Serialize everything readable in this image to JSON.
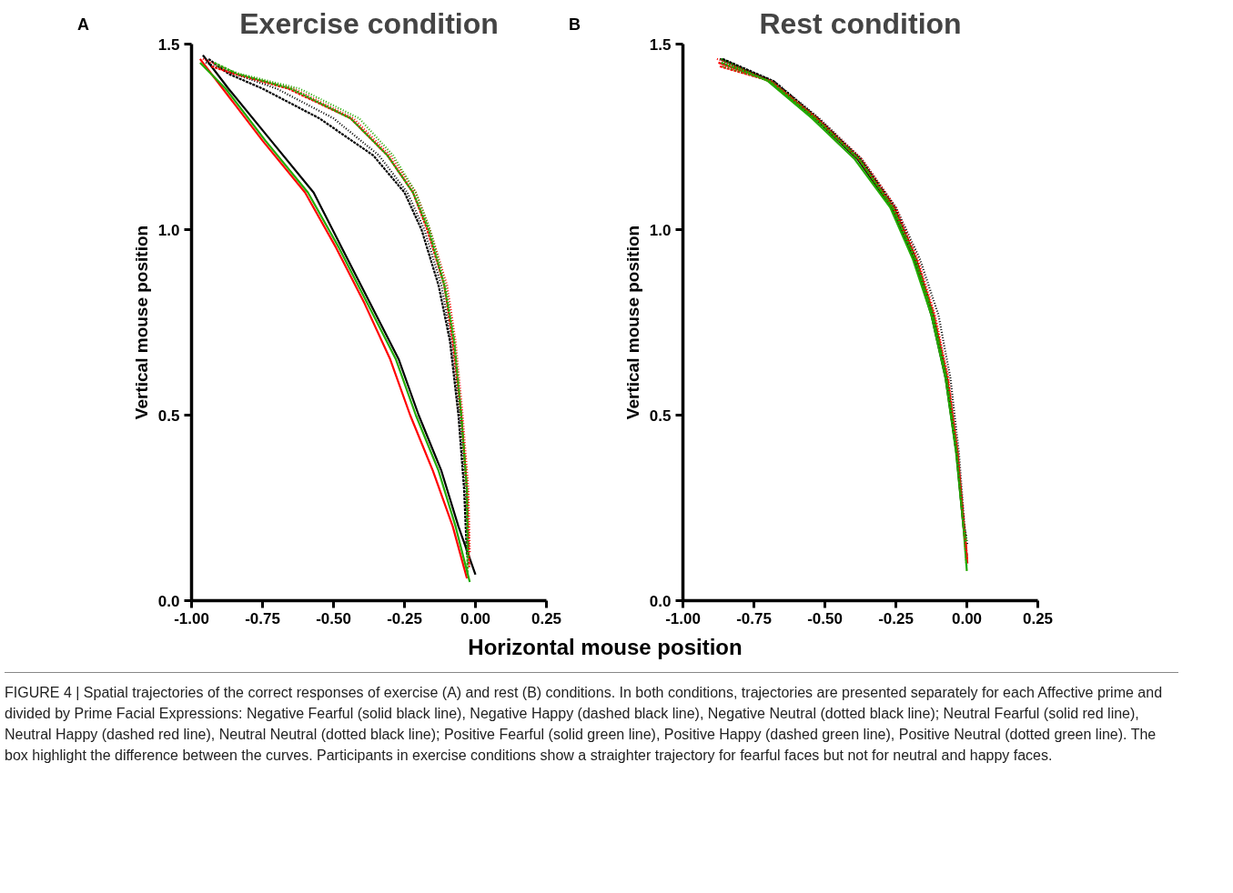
{
  "chart_data": [
    {
      "type": "line",
      "title": "Exercise condition",
      "xlabel": "Horizontal mouse position",
      "ylabel": "Vertical mouse position",
      "annotations": [
        "A",
        "FIGURE 4 | Spatial trajectories of the correct responses of exercise (A) and rest (B) conditions. In both conditions, trajectories are presented separately for each Affective prime and divided by Prime Facial Expressions: Negative Fearful (solid black line), Negative Happy (dashed black line), Negative Neutral (dotted black line); Neutral Fearful (solid red line), Neutral Happy (dashed red line), Neutral Neutral (dotted black line); Positive Fearful (solid green line), Positive Happy (dashed green line), Positive Neutral (dotted green line). The box highlight the difference between the curves. Participants in exercise conditions show a straighter trajectory for fearful faces but not for neutral and happy faces."
      ],
      "xlim": [
        -1.0,
        0.25
      ],
      "ylim": [
        0,
        1.5
      ],
      "xticks": [
        {
          "value": -1.0,
          "label": "-1.00"
        },
        {
          "value": -0.75,
          "label": "-0.75"
        },
        {
          "value": -0.5,
          "label": "-0.50"
        },
        {
          "value": -0.25,
          "label": "-0.25"
        },
        {
          "value": 0,
          "label": "0.00"
        },
        {
          "value": 0.25,
          "label": "0.25"
        }
      ],
      "yticks": [
        {
          "value": 0,
          "label": "0.0"
        },
        {
          "value": 0.5,
          "label": "0.5"
        },
        {
          "value": 1.0,
          "label": "1.0"
        },
        {
          "value": 1.5,
          "label": "1.5"
        }
      ],
      "series": [
        {
          "color": "#000000",
          "line_style": "solid",
          "x": [
            -0.96,
            -0.87,
            -0.72,
            -0.57,
            -0.47,
            -0.37,
            -0.27,
            -0.2,
            -0.12,
            -0.06,
            0.0
          ],
          "values": [
            1.47,
            1.38,
            1.24,
            1.1,
            0.95,
            0.8,
            0.65,
            0.5,
            0.35,
            0.2,
            0.07
          ]
        },
        {
          "color": "#ff0000",
          "line_style": "solid",
          "x": [
            -0.97,
            -0.89,
            -0.75,
            -0.6,
            -0.49,
            -0.39,
            -0.3,
            -0.23,
            -0.15,
            -0.08,
            -0.03
          ],
          "values": [
            1.46,
            1.38,
            1.24,
            1.1,
            0.95,
            0.8,
            0.65,
            0.5,
            0.35,
            0.2,
            0.06
          ]
        },
        {
          "color": "#22aa00",
          "line_style": "solid",
          "x": [
            -0.97,
            -0.88,
            -0.74,
            -0.59,
            -0.48,
            -0.38,
            -0.28,
            -0.21,
            -0.13,
            -0.07,
            -0.02
          ],
          "values": [
            1.45,
            1.38,
            1.24,
            1.1,
            0.95,
            0.8,
            0.65,
            0.5,
            0.35,
            0.2,
            0.05
          ]
        },
        {
          "color": "#000000",
          "line_style": "dashed",
          "x": [
            -0.94,
            -0.87,
            -0.75,
            -0.55,
            -0.36,
            -0.25,
            -0.19,
            -0.13,
            -0.09,
            -0.06,
            -0.04,
            -0.03
          ],
          "values": [
            1.46,
            1.42,
            1.38,
            1.3,
            1.2,
            1.1,
            1.0,
            0.85,
            0.7,
            0.5,
            0.3,
            0.12
          ]
        },
        {
          "color": "#000000",
          "line_style": "dotted",
          "x": [
            -0.95,
            -0.85,
            -0.7,
            -0.5,
            -0.34,
            -0.24,
            -0.18,
            -0.12,
            -0.085,
            -0.055,
            -0.035,
            -0.025
          ],
          "values": [
            1.45,
            1.42,
            1.38,
            1.3,
            1.2,
            1.1,
            1.0,
            0.85,
            0.7,
            0.5,
            0.3,
            0.1
          ]
        },
        {
          "color": "#ff0000",
          "line_style": "dashed",
          "x": [
            -0.93,
            -0.85,
            -0.66,
            -0.44,
            -0.31,
            -0.22,
            -0.17,
            -0.11,
            -0.08,
            -0.05,
            -0.03,
            -0.022
          ],
          "values": [
            1.44,
            1.42,
            1.38,
            1.3,
            1.2,
            1.1,
            1.0,
            0.85,
            0.7,
            0.5,
            0.3,
            0.09
          ]
        },
        {
          "color": "#ff0000",
          "line_style": "dotted",
          "x": [
            -0.96,
            -0.84,
            -0.64,
            -0.43,
            -0.3,
            -0.21,
            -0.16,
            -0.1,
            -0.07,
            -0.045,
            -0.025,
            -0.02
          ],
          "values": [
            1.46,
            1.42,
            1.38,
            1.3,
            1.2,
            1.1,
            1.0,
            0.85,
            0.7,
            0.5,
            0.3,
            0.13
          ]
        },
        {
          "color": "#22aa00",
          "line_style": "dashed",
          "x": [
            -0.92,
            -0.84,
            -0.65,
            -0.44,
            -0.31,
            -0.22,
            -0.165,
            -0.11,
            -0.075,
            -0.05,
            -0.03,
            -0.028
          ],
          "values": [
            1.45,
            1.42,
            1.38,
            1.3,
            1.2,
            1.1,
            1.0,
            0.85,
            0.7,
            0.5,
            0.3,
            0.07
          ]
        },
        {
          "color": "#22aa00",
          "line_style": "dotted",
          "x": [
            -0.91,
            -0.83,
            -0.62,
            -0.41,
            -0.29,
            -0.21,
            -0.16,
            -0.105,
            -0.075,
            -0.05,
            -0.03,
            -0.024
          ],
          "values": [
            1.44,
            1.42,
            1.38,
            1.3,
            1.2,
            1.1,
            1.0,
            0.85,
            0.7,
            0.5,
            0.3,
            0.11
          ]
        }
      ]
    },
    {
      "type": "line",
      "title": "Rest condition",
      "ylabel": "Vertical mouse position",
      "annotations": [
        "B"
      ],
      "xlim": [
        -1.0,
        0.25
      ],
      "ylim": [
        0,
        1.5
      ],
      "xticks": [
        {
          "value": -1.0,
          "label": "-1.00"
        },
        {
          "value": -0.75,
          "label": "-0.75"
        },
        {
          "value": -0.5,
          "label": "-0.50"
        },
        {
          "value": -0.25,
          "label": "-0.25"
        },
        {
          "value": 0,
          "label": "0.00"
        },
        {
          "value": 0.25,
          "label": "0.25"
        }
      ],
      "yticks": [
        {
          "value": 0,
          "label": "0.0"
        },
        {
          "value": 0.5,
          "label": "0.5"
        },
        {
          "value": 1.0,
          "label": "1.0"
        },
        {
          "value": 1.5,
          "label": "1.5"
        }
      ],
      "series": [
        {
          "color": "#000000",
          "line_style": "solid",
          "x": [
            -0.87,
            -0.69,
            -0.535,
            -0.385,
            -0.265,
            -0.185,
            -0.125,
            -0.075,
            -0.037,
            -0.012,
            0.0
          ],
          "values": [
            1.46,
            1.4,
            1.3,
            1.19,
            1.06,
            0.92,
            0.77,
            0.6,
            0.4,
            0.2,
            0.12
          ]
        },
        {
          "color": "#ff0000",
          "line_style": "solid",
          "x": [
            -0.875,
            -0.69,
            -0.53,
            -0.38,
            -0.26,
            -0.18,
            -0.12,
            -0.07,
            -0.035,
            -0.01,
            0.002
          ],
          "values": [
            1.45,
            1.4,
            1.3,
            1.19,
            1.06,
            0.92,
            0.77,
            0.6,
            0.4,
            0.2,
            0.1
          ]
        },
        {
          "color": "#22aa00",
          "line_style": "solid",
          "x": [
            -0.865,
            -0.7,
            -0.545,
            -0.395,
            -0.27,
            -0.19,
            -0.125,
            -0.075,
            -0.038,
            -0.012,
            0.0
          ],
          "values": [
            1.46,
            1.4,
            1.3,
            1.19,
            1.06,
            0.92,
            0.77,
            0.6,
            0.4,
            0.2,
            0.08
          ]
        },
        {
          "color": "#000000",
          "line_style": "dashed",
          "x": [
            -0.86,
            -0.68,
            -0.525,
            -0.375,
            -0.255,
            -0.178,
            -0.118,
            -0.07,
            -0.035,
            -0.01,
            -0.003
          ],
          "values": [
            1.46,
            1.4,
            1.3,
            1.19,
            1.06,
            0.92,
            0.77,
            0.6,
            0.4,
            0.2,
            0.17
          ]
        },
        {
          "color": "#000000",
          "line_style": "dotted",
          "x": [
            -0.855,
            -0.68,
            -0.52,
            -0.37,
            -0.25,
            -0.165,
            -0.1,
            -0.058,
            -0.028,
            -0.008,
            0.002
          ],
          "values": [
            1.45,
            1.4,
            1.3,
            1.19,
            1.06,
            0.92,
            0.77,
            0.6,
            0.4,
            0.2,
            0.15
          ]
        },
        {
          "color": "#ff0000",
          "line_style": "dashed",
          "x": [
            -0.87,
            -0.69,
            -0.53,
            -0.38,
            -0.258,
            -0.178,
            -0.116,
            -0.068,
            -0.033,
            -0.01,
            0.001
          ],
          "values": [
            1.44,
            1.4,
            1.3,
            1.19,
            1.06,
            0.92,
            0.77,
            0.6,
            0.4,
            0.2,
            0.11
          ]
        },
        {
          "color": "#ff0000",
          "line_style": "dotted",
          "x": [
            -0.88,
            -0.69,
            -0.525,
            -0.37,
            -0.25,
            -0.172,
            -0.112,
            -0.065,
            -0.032,
            -0.01,
            0.0
          ],
          "values": [
            1.46,
            1.4,
            1.3,
            1.19,
            1.06,
            0.92,
            0.77,
            0.6,
            0.4,
            0.2,
            0.13
          ]
        },
        {
          "color": "#22aa00",
          "line_style": "dashed",
          "x": [
            -0.865,
            -0.695,
            -0.535,
            -0.38,
            -0.262,
            -0.182,
            -0.12,
            -0.072,
            -0.036,
            -0.012,
            -0.002
          ],
          "values": [
            1.45,
            1.4,
            1.3,
            1.19,
            1.06,
            0.92,
            0.77,
            0.6,
            0.4,
            0.2,
            0.16
          ]
        },
        {
          "color": "#22aa00",
          "line_style": "dotted",
          "x": [
            -0.86,
            -0.69,
            -0.53,
            -0.378,
            -0.26,
            -0.18,
            -0.118,
            -0.07,
            -0.035,
            -0.011,
            -0.001
          ],
          "values": [
            1.44,
            1.4,
            1.3,
            1.19,
            1.06,
            0.92,
            0.77,
            0.6,
            0.4,
            0.2,
            0.09
          ]
        }
      ]
    }
  ]
}
